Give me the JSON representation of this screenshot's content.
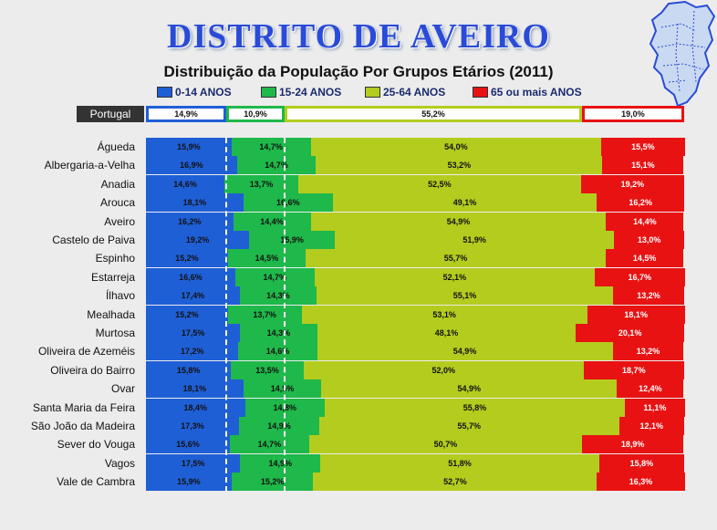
{
  "title": "DISTRITO DE AVEIRO",
  "chart_data": {
    "type": "bar",
    "stacked": true,
    "orientation": "horizontal",
    "title": "Distribuição da População Por Grupos Etários (2011)",
    "legend_position": "top",
    "series_colors": [
      "#1f5fd6",
      "#1fb84a",
      "#b4cc1e",
      "#e81212"
    ],
    "series_names": [
      "0-14 ANOS",
      "15-24 ANOS",
      "25-64 ANOS",
      "65 ou mais ANOS"
    ],
    "reference": {
      "label": "Portugal",
      "labels": [
        "14,9%",
        "10,9%",
        "55,2%",
        "19,0%"
      ],
      "values": [
        14.9,
        10.9,
        55.2,
        19.0
      ]
    },
    "rows": [
      {
        "name": "Águeda",
        "labels": [
          "15,9%",
          "14,7%",
          "54,0%",
          "15,5%"
        ],
        "values": [
          15.9,
          14.7,
          54.0,
          15.5
        ]
      },
      {
        "name": "Albergaria-a-Velha",
        "labels": [
          "16,9%",
          "14,7%",
          "53,2%",
          "15,1%"
        ],
        "values": [
          16.9,
          14.7,
          53.2,
          15.1
        ]
      },
      {
        "name": "Anadia",
        "labels": [
          "14,6%",
          "13,7%",
          "52,5%",
          "19,2%"
        ],
        "values": [
          14.6,
          13.7,
          52.5,
          19.2
        ]
      },
      {
        "name": "Arouca",
        "labels": [
          "18,1%",
          "16,6%",
          "49,1%",
          "16,2%"
        ],
        "values": [
          18.1,
          16.6,
          49.1,
          16.2
        ]
      },
      {
        "name": "Aveiro",
        "labels": [
          "16,2%",
          "14,4%",
          "54,9%",
          "14,4%"
        ],
        "values": [
          16.2,
          14.4,
          54.9,
          14.4
        ]
      },
      {
        "name": "Castelo de Paiva",
        "labels": [
          "19,2%",
          "15,9%",
          "51,9%",
          "13,0%"
        ],
        "values": [
          19.2,
          15.9,
          51.9,
          13.0
        ]
      },
      {
        "name": "Espinho",
        "labels": [
          "15,2%",
          "14,5%",
          "55,7%",
          "14,5%"
        ],
        "values": [
          15.2,
          14.5,
          55.7,
          14.5
        ]
      },
      {
        "name": "Estarreja",
        "labels": [
          "16,6%",
          "14,7%",
          "52,1%",
          "16,7%"
        ],
        "values": [
          16.6,
          14.7,
          52.1,
          16.7
        ]
      },
      {
        "name": "Ílhavo",
        "labels": [
          "17,4%",
          "14,3%",
          "55,1%",
          "13,2%"
        ],
        "values": [
          17.4,
          14.3,
          55.1,
          13.2
        ]
      },
      {
        "name": "Mealhada",
        "labels": [
          "15,2%",
          "13,7%",
          "53,1%",
          "18,1%"
        ],
        "values": [
          15.2,
          13.7,
          53.1,
          18.1
        ]
      },
      {
        "name": "Murtosa",
        "labels": [
          "17,5%",
          "14,3%",
          "48,1%",
          "20,1%"
        ],
        "values": [
          17.5,
          14.3,
          48.1,
          20.1
        ]
      },
      {
        "name": "Oliveira de Azeméis",
        "labels": [
          "17,2%",
          "14,6%",
          "54,9%",
          "13,2%"
        ],
        "values": [
          17.2,
          14.6,
          54.9,
          13.2
        ]
      },
      {
        "name": "Oliveira do Bairro",
        "labels": [
          "15,8%",
          "13,5%",
          "52,0%",
          "18,7%"
        ],
        "values": [
          15.8,
          13.5,
          52.0,
          18.7
        ]
      },
      {
        "name": "Ovar",
        "labels": [
          "18,1%",
          "14,5%",
          "54,9%",
          "12,4%"
        ],
        "values": [
          18.1,
          14.5,
          54.9,
          12.4
        ]
      },
      {
        "name": "Santa Maria da Feira",
        "labels": [
          "18,4%",
          "14,8%",
          "55,8%",
          "11,1%"
        ],
        "values": [
          18.4,
          14.8,
          55.8,
          11.1
        ]
      },
      {
        "name": "São João da Madeira",
        "labels": [
          "17,3%",
          "14,9%",
          "55,7%",
          "12,1%"
        ],
        "values": [
          17.3,
          14.9,
          55.7,
          12.1
        ]
      },
      {
        "name": "Sever do Vouga",
        "labels": [
          "15,6%",
          "14,7%",
          "50,7%",
          "18,9%"
        ],
        "values": [
          15.6,
          14.7,
          50.7,
          18.9
        ]
      },
      {
        "name": "Vagos",
        "labels": [
          "17,5%",
          "14,9%",
          "51,8%",
          "15,8%"
        ],
        "values": [
          17.5,
          14.9,
          51.8,
          15.8
        ]
      },
      {
        "name": "Vale de Cambra",
        "labels": [
          "15,9%",
          "15,2%",
          "52,7%",
          "16,3%"
        ],
        "values": [
          15.9,
          15.2,
          52.7,
          16.3
        ]
      }
    ]
  }
}
